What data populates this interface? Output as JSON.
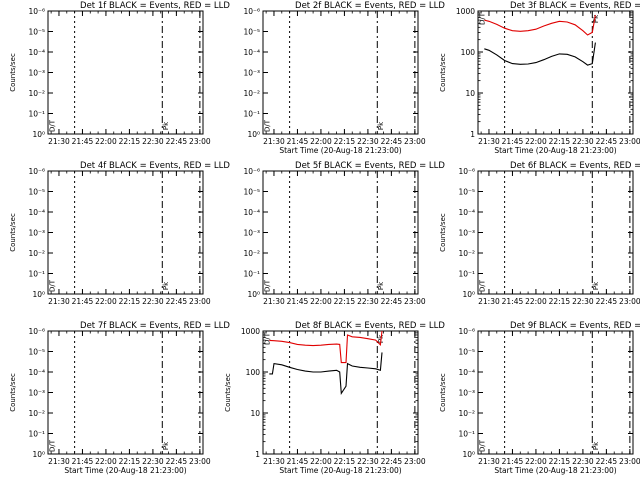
{
  "figure": {
    "background": "#ffffff",
    "axis_color": "#000000",
    "events_color": "#000000",
    "lld_color": "#e00000"
  },
  "chart_data": [
    {
      "type": "line",
      "title": "Det 1f BLACK = Events, RED = LLD",
      "xlabel": "",
      "ylabel": "Counts/sec",
      "scale": "log",
      "yticks": [
        "10⁻⁶",
        "10⁻⁵",
        "10⁻⁴",
        "10⁻³",
        "10⁻²",
        "10⁻¹",
        "10⁰"
      ],
      "xticks": [
        "21:30",
        "21:45",
        "22:00",
        "22:15",
        "22:30",
        "22:45",
        "23:00"
      ],
      "markers": [
        {
          "label": "D/T",
          "x": "21:27"
        },
        {
          "label": "Pk",
          "x": "22:39"
        }
      ],
      "series": []
    },
    {
      "type": "line",
      "title": "Det 2f BLACK = Events, RED = LLD",
      "xlabel": "Start Time (20-Aug-18 21:23:00)",
      "ylabel": "",
      "scale": "log",
      "yticks": [
        "10⁻⁶",
        "10⁻⁵",
        "10⁻⁴",
        "10⁻³",
        "10⁻²",
        "10⁻¹",
        "10⁰"
      ],
      "xticks": [
        "21:30",
        "21:45",
        "22:00",
        "22:15",
        "22:30",
        "22:45",
        "23:00"
      ],
      "markers": [
        {
          "label": "D/T",
          "x": "21:27"
        },
        {
          "label": "Pk",
          "x": "22:39"
        }
      ],
      "series": []
    },
    {
      "type": "line",
      "title": "Det 3f BLACK = Events, RED = LLD",
      "xlabel": "Start Time (20-Aug-18 21:23:00)",
      "ylabel": "Counts/sec",
      "scale": "log",
      "yticks": [
        "1",
        "10",
        "100",
        "1000"
      ],
      "xticks": [
        "21:30",
        "21:45",
        "22:00",
        "22:15",
        "22:30",
        "22:45",
        "23:00"
      ],
      "markers": [
        {
          "label": "D/T",
          "x": "21:27"
        },
        {
          "label": "Pk",
          "x": "22:39"
        }
      ],
      "series": [
        {
          "color": "#e00000",
          "x": [
            "21:27",
            "21:30",
            "21:35",
            "21:40",
            "21:45",
            "21:50",
            "21:55",
            "22:00",
            "22:05",
            "22:10",
            "22:15",
            "22:20",
            "22:25",
            "22:30",
            "22:33",
            "22:36",
            "22:38"
          ],
          "y": [
            600,
            560,
            470,
            380,
            330,
            320,
            330,
            360,
            430,
            500,
            560,
            540,
            460,
            330,
            260,
            300,
            800
          ]
        },
        {
          "color": "#000000",
          "x": [
            "21:27",
            "21:30",
            "21:35",
            "21:40",
            "21:45",
            "21:50",
            "21:55",
            "22:00",
            "22:05",
            "22:10",
            "22:15",
            "22:20",
            "22:25",
            "22:30",
            "22:33",
            "22:36",
            "22:38"
          ],
          "y": [
            120,
            110,
            85,
            62,
            52,
            50,
            51,
            55,
            65,
            78,
            90,
            88,
            76,
            58,
            48,
            52,
            170
          ]
        }
      ]
    },
    {
      "type": "line",
      "title": "Det 4f BLACK = Events, RED = LLD",
      "xlabel": "",
      "ylabel": "Counts/sec",
      "scale": "log",
      "yticks": [
        "10⁻⁶",
        "10⁻⁵",
        "10⁻⁴",
        "10⁻³",
        "10⁻²",
        "10⁻¹",
        "10⁰"
      ],
      "xticks": [
        "21:30",
        "21:45",
        "22:00",
        "22:15",
        "22:30",
        "22:45",
        "23:00"
      ],
      "markers": [
        {
          "label": "D/T",
          "x": "21:27"
        },
        {
          "label": "Pk",
          "x": "22:39"
        }
      ],
      "series": []
    },
    {
      "type": "line",
      "title": "Det 5f BLACK = Events, RED = LLD",
      "xlabel": "",
      "ylabel": "",
      "scale": "log",
      "yticks": [
        "10⁻⁶",
        "10⁻⁵",
        "10⁻⁴",
        "10⁻³",
        "10⁻²",
        "10⁻¹",
        "10⁰"
      ],
      "xticks": [
        "21:30",
        "21:45",
        "22:00",
        "22:15",
        "22:30",
        "22:45",
        "23:00"
      ],
      "markers": [
        {
          "label": "D/T",
          "x": "21:27"
        },
        {
          "label": "Pk",
          "x": "22:39"
        }
      ],
      "series": []
    },
    {
      "type": "line",
      "title": "Det 6f BLACK = Events, RED = LLD",
      "xlabel": "",
      "ylabel": "Counts/sec",
      "scale": "log",
      "yticks": [
        "10⁻⁶",
        "10⁻⁵",
        "10⁻⁴",
        "10⁻³",
        "10⁻²",
        "10⁻¹",
        "10⁰"
      ],
      "xticks": [
        "21:30",
        "21:45",
        "22:00",
        "22:15",
        "22:30",
        "22:45",
        "23:00"
      ],
      "markers": [
        {
          "label": "D/T",
          "x": "21:27"
        },
        {
          "label": "Pk",
          "x": "22:39"
        }
      ],
      "series": []
    },
    {
      "type": "line",
      "title": "Det 7f BLACK = Events, RED = LLD",
      "xlabel": "Start Time (20-Aug-18 21:23:00)",
      "ylabel": "Counts/sec",
      "scale": "log",
      "yticks": [
        "10⁻⁶",
        "10⁻⁵",
        "10⁻⁴",
        "10⁻³",
        "10⁻²",
        "10⁻¹",
        "10⁰"
      ],
      "xticks": [
        "21:30",
        "21:45",
        "22:00",
        "22:15",
        "22:30",
        "22:45",
        "23:00"
      ],
      "markers": [
        {
          "label": "D/T",
          "x": "21:27"
        },
        {
          "label": "Pk",
          "x": "22:39"
        }
      ],
      "series": []
    },
    {
      "type": "line",
      "title": "Det 8f BLACK = Events, RED = LLD",
      "xlabel": "Start Time (20-Aug-18 21:23:00)",
      "ylabel": "Counts/sec",
      "scale": "log",
      "yticks": [
        "1",
        "10",
        "100",
        "1000"
      ],
      "xticks": [
        "21:30",
        "21:45",
        "22:00",
        "22:15",
        "22:30",
        "22:45",
        "23:00"
      ],
      "markers": [
        {
          "label": "D/T",
          "x": "21:27"
        },
        {
          "label": "Pk",
          "x": "22:39"
        }
      ],
      "series": [
        {
          "color": "#e00000",
          "x": [
            "21:27",
            "21:30",
            "21:35",
            "21:40",
            "21:45",
            "21:50",
            "21:55",
            "22:00",
            "22:05",
            "22:10",
            "22:12",
            "22:13",
            "22:16",
            "22:17",
            "22:20",
            "22:25",
            "22:30",
            "22:35",
            "22:38",
            "22:39"
          ],
          "y": [
            590,
            580,
            560,
            520,
            470,
            450,
            440,
            450,
            470,
            480,
            470,
            170,
            170,
            800,
            720,
            700,
            650,
            600,
            460,
            1000
          ]
        },
        {
          "color": "#000000",
          "x": [
            "21:27",
            "21:29",
            "21:30",
            "21:35",
            "21:40",
            "21:45",
            "21:50",
            "21:55",
            "22:00",
            "22:05",
            "22:10",
            "22:12",
            "22:13",
            "22:16",
            "22:17",
            "22:20",
            "22:25",
            "22:30",
            "22:35",
            "22:38",
            "22:39"
          ],
          "y": [
            90,
            90,
            160,
            150,
            130,
            115,
            105,
            100,
            100,
            105,
            110,
            100,
            30,
            45,
            160,
            140,
            130,
            125,
            120,
            110,
            300
          ]
        }
      ]
    },
    {
      "type": "line",
      "title": "Det 9f BLACK = Events, RED = LLD",
      "xlabel": "Start Time (20-Aug-18 21:23:00)",
      "ylabel": "Counts/sec",
      "scale": "log",
      "yticks": [
        "10⁻⁶",
        "10⁻⁵",
        "10⁻⁴",
        "10⁻³",
        "10⁻²",
        "10⁻¹",
        "10⁰"
      ],
      "xticks": [
        "21:30",
        "21:45",
        "22:00",
        "22:15",
        "22:30",
        "22:45",
        "23:00"
      ],
      "markers": [
        {
          "label": "D/T",
          "x": "21:27"
        },
        {
          "label": "Pk",
          "x": "22:39"
        }
      ],
      "series": []
    }
  ]
}
